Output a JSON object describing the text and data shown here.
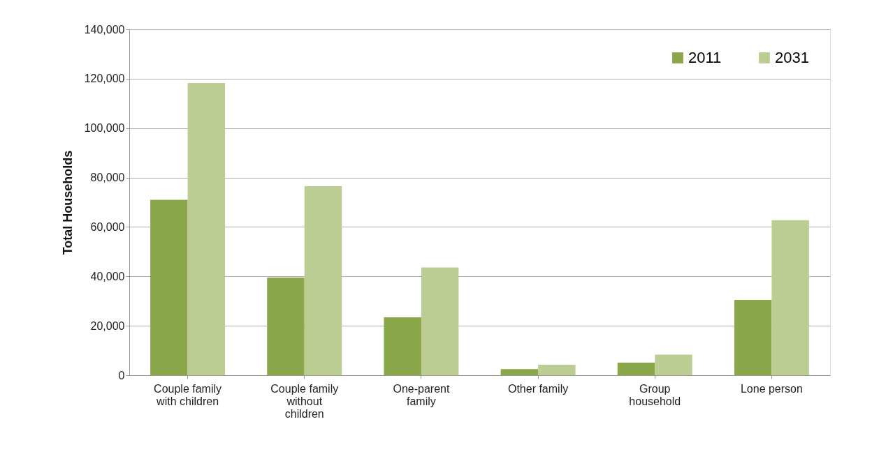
{
  "chart_data": {
    "type": "bar",
    "ylabel": "Total Households",
    "categories": [
      "Couple family with children",
      "Couple family without children",
      "One-parent family",
      "Other family",
      "Group household",
      "Lone person"
    ],
    "series": [
      {
        "name": "2011",
        "color": "#8aa84a",
        "values": [
          71000,
          39500,
          23400,
          2500,
          5100,
          30500
        ]
      },
      {
        "name": "2031",
        "color": "#bccd94",
        "values": [
          118300,
          76500,
          43600,
          4200,
          8300,
          62700
        ]
      }
    ],
    "ylim": [
      0,
      140000
    ],
    "yticks": [
      0,
      {
        "value": 20000,
        "label": "20,000"
      },
      {
        "value": 40000,
        "label": "40,000"
      },
      {
        "value": 60000,
        "label": "60,000"
      },
      {
        "value": 80000,
        "label": "80,000"
      },
      {
        "value": 100000,
        "label": "100,000"
      },
      {
        "value": 120000,
        "label": "120,000"
      },
      {
        "value": 140000,
        "label": "140,000"
      }
    ],
    "grid": "y",
    "legend": "top right"
  }
}
